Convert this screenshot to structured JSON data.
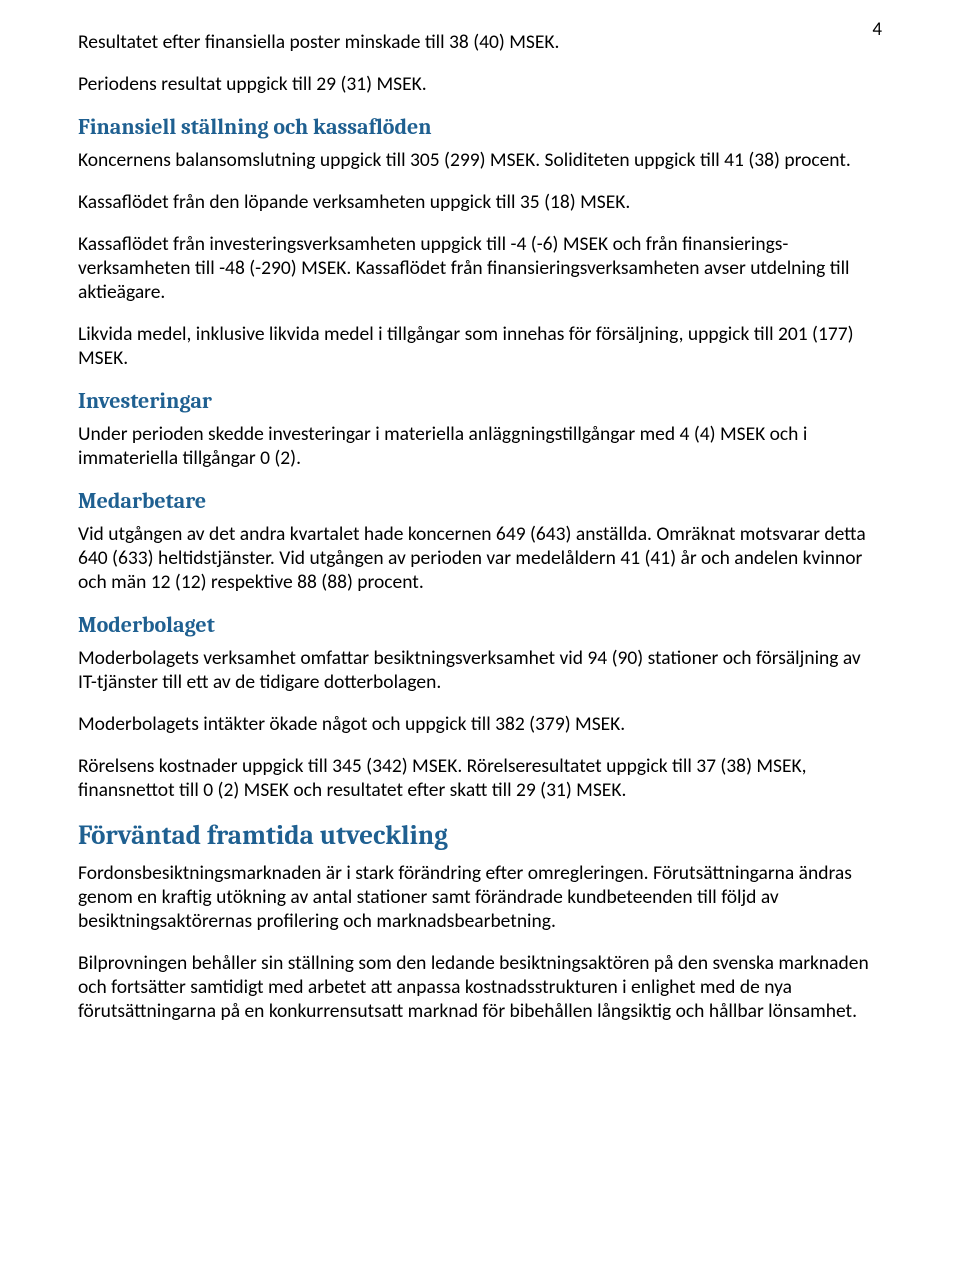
{
  "pageNumber": "4",
  "paragraphs": {
    "p1": "Resultatet efter finansiella poster minskade till 38 (40) MSEK.",
    "p2": "Periodens resultat uppgick till 29 (31) MSEK.",
    "p3": "Koncernens balansomslutning uppgick till 305 (299) MSEK. Soliditeten uppgick till 41 (38) procent.",
    "p4": "Kassaflödet från den löpande verksamheten uppgick till 35 (18) MSEK.",
    "p5": "Kassaflödet från investeringsverksamheten uppgick till -4 (-6) MSEK och från finansierings-verksamheten till -48 (-290) MSEK. Kassaflödet från finansieringsverksamheten avser utdelning till aktieägare.",
    "p6": "Likvida medel, inklusive likvida medel i tillgångar som innehas för försäljning, uppgick till 201 (177) MSEK.",
    "p7": "Under perioden skedde investeringar i materiella anläggningstillgångar med 4 (4) MSEK och i immateriella tillgångar 0 (2).",
    "p8": "Vid utgången av det andra kvartalet hade koncernen 649 (643) anställda. Omräknat motsvarar detta 640 (633) heltidstjänster. Vid utgången av perioden var medelåldern 41 (41) år och andelen kvinnor och män 12 (12) respektive 88 (88) procent.",
    "p9": "Moderbolagets verksamhet omfattar besiktningsverksamhet vid 94 (90) stationer och försäljning av IT-tjänster till ett av de tidigare dotterbolagen.",
    "p10": "Moderbolagets intäkter ökade något och uppgick till 382 (379) MSEK.",
    "p11": "Rörelsens kostnader uppgick till 345 (342) MSEK. Rörelseresultatet uppgick till 37 (38) MSEK, finansnettot till 0 (2) MSEK och resultatet efter skatt till 29 (31) MSEK.",
    "p12": "Fordonsbesiktningsmarknaden är i stark förändring efter omregleringen. Förutsättningarna ändras genom en kraftig utökning av antal stationer samt förändrade kundbeteenden till följd av besiktningsaktörernas profilering och marknadsbearbetning.",
    "p13": "Bilprovningen behåller sin ställning som den ledande besiktningsaktören på den svenska marknaden och fortsätter samtidigt med arbetet att anpassa kostnadsstrukturen i enlighet med de nya förutsättningarna på en konkurrensutsatt marknad för bibehållen långsiktig och hållbar lönsamhet."
  },
  "headings": {
    "h1": "Finansiell ställning och kassaflöden",
    "h2": "Investeringar",
    "h3": "Medarbetare",
    "h4": "Moderbolaget",
    "h5": "Förväntad framtida utveckling"
  },
  "colors": {
    "headingColor": "#1f6091",
    "textColor": "#000000",
    "background": "#ffffff"
  },
  "typography": {
    "bodyFontSizePx": 19.5,
    "subHeadingFontSizePx": 22,
    "mainHeadingFontSizePx": 27,
    "bodyFontFamily": "Calibri",
    "headingFontFamily": "Cambria"
  },
  "page": {
    "widthPx": 960,
    "heightPx": 1271
  }
}
